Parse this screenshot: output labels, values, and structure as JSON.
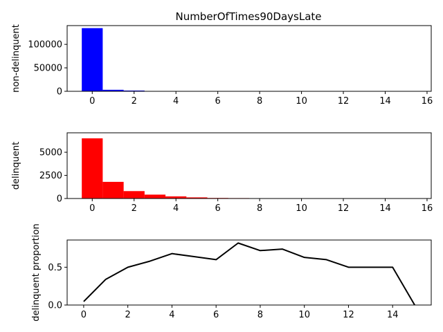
{
  "title": "NumberOfTimes90DaysLate",
  "chart_data": [
    {
      "type": "bar",
      "ylabel": "non-delinquent",
      "color": "#0000ff",
      "x": [
        0,
        1,
        2,
        3,
        4,
        5,
        6,
        7,
        8,
        9,
        10,
        11,
        12,
        13,
        14,
        15
      ],
      "values": [
        134600,
        3200,
        1600,
        400,
        120,
        60,
        40,
        20,
        10,
        6,
        4,
        2,
        1,
        0,
        0,
        0
      ],
      "xlim": [
        -1.2,
        16.2
      ],
      "ylim": [
        0,
        140000
      ],
      "xticks": [
        0,
        2,
        4,
        6,
        8,
        10,
        12,
        14,
        16
      ],
      "yticks": [
        0,
        50000,
        100000
      ]
    },
    {
      "type": "bar",
      "ylabel": "delinquent",
      "color": "#ff0000",
      "x": [
        0,
        1,
        2,
        3,
        4,
        5,
        6,
        7,
        8,
        9,
        10,
        11,
        12,
        13,
        14,
        15
      ],
      "values": [
        6500,
        1800,
        800,
        420,
        230,
        120,
        60,
        45,
        30,
        20,
        6,
        3,
        1,
        1,
        1,
        0
      ],
      "xlim": [
        -1.2,
        16.2
      ],
      "ylim": [
        0,
        7100
      ],
      "xticks": [
        0,
        2,
        4,
        6,
        8,
        10,
        12,
        14,
        16
      ],
      "yticks": [
        0,
        2500,
        5000
      ]
    },
    {
      "type": "line",
      "ylabel": "delinquent proportion",
      "color": "#000000",
      "x": [
        0,
        1,
        2,
        3,
        4,
        5,
        6,
        7,
        8,
        9,
        10,
        11,
        12,
        13,
        14,
        15
      ],
      "values": [
        0.046,
        0.34,
        0.5,
        0.58,
        0.68,
        0.64,
        0.6,
        0.82,
        0.72,
        0.74,
        0.63,
        0.6,
        0.5,
        0.5,
        0.5,
        0.0
      ],
      "xlim": [
        -0.75,
        15.75
      ],
      "ylim": [
        0,
        0.86
      ],
      "xticks": [
        0,
        2,
        4,
        6,
        8,
        10,
        12,
        14
      ],
      "yticks": [
        0.0,
        0.5
      ],
      "ytick_labels": [
        "0.0",
        "0.5"
      ]
    }
  ]
}
